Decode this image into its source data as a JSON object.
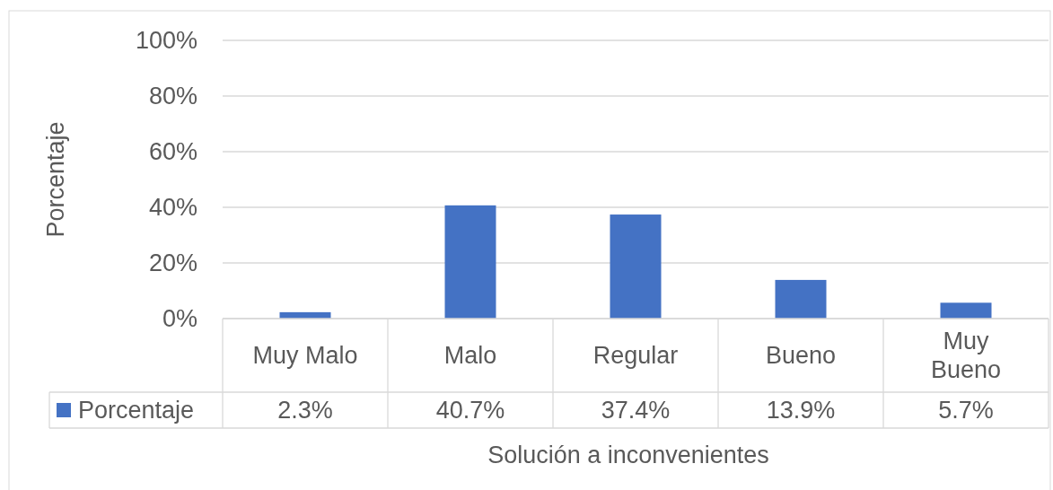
{
  "chart_data": {
    "type": "bar",
    "xlabel": "Solución a inconvenientes",
    "ylabel": "Porcentaje",
    "categories": [
      "Muy Malo",
      "Malo",
      "Regular",
      "Bueno",
      "Muy Bueno"
    ],
    "series": [
      {
        "name": "Porcentaje",
        "color": "#4472c4",
        "values": [
          2.3,
          40.7,
          37.4,
          13.9,
          5.7
        ],
        "value_labels": [
          "2.3%",
          "40.7%",
          "37.4%",
          "13.9%",
          "5.7%"
        ]
      }
    ],
    "ylim": [
      0,
      100
    ],
    "yticks": [
      {
        "value": 0,
        "label": "0%"
      },
      {
        "value": 20,
        "label": "20%"
      },
      {
        "value": 40,
        "label": "40%"
      },
      {
        "value": 60,
        "label": "60%"
      },
      {
        "value": 80,
        "label": "80%"
      },
      {
        "value": 100,
        "label": "100%"
      }
    ],
    "grid": "y",
    "legend": "bottom"
  }
}
